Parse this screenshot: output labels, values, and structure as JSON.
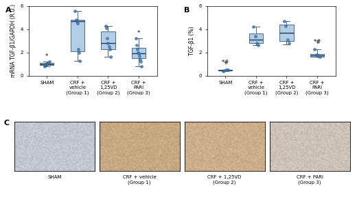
{
  "chart_data": [
    {
      "type": "box",
      "title": "A",
      "y_label": "mRNA TGF-β1/GAPDH (R.U.)",
      "categories": [
        "SHAM",
        "CRF +\nvehicle\n(Group 1)",
        "CRF +\n1,25VD\n(Group 2)",
        "CRF +\nPARI\n(Group 3)"
      ],
      "boxes": [
        {
          "whislo": 0.8,
          "q1": 0.9,
          "med": 1.0,
          "q3": 1.1,
          "whishi": 1.2
        },
        {
          "whislo": 1.3,
          "q1": 2.1,
          "med": 4.7,
          "q3": 4.8,
          "whishi": 5.6
        },
        {
          "whislo": 1.6,
          "q1": 2.3,
          "med": 2.8,
          "q3": 3.8,
          "whishi": 4.3
        },
        {
          "whislo": 0.8,
          "q1": 1.5,
          "med": 1.9,
          "q3": 2.4,
          "whishi": 3.2
        }
      ],
      "points": [
        [
          0.8,
          0.9,
          1.0,
          1.05,
          1.1,
          1.2
        ],
        [
          5.6,
          4.8,
          4.7,
          4.5,
          2.3,
          2.0,
          1.3
        ],
        [
          4.3,
          4.1,
          3.2,
          2.8,
          2.5,
          2.3,
          1.6
        ],
        [
          3.2,
          2.6,
          2.3,
          2.0,
          1.9,
          1.7,
          1.4,
          1.2,
          0.8
        ]
      ],
      "colors": [
        "#f0a868",
        "#b4cde6",
        "#b4cde6",
        "#b4cde6"
      ],
      "color": "#3a7ab8",
      "ylim": [
        0,
        6
      ],
      "yticks": [
        0,
        2,
        4,
        6
      ],
      "annotations": [
        {
          "text": "*",
          "category": 0,
          "y": 1.4
        },
        {
          "text": "*",
          "category": 3,
          "y": 3.4
        }
      ]
    },
    {
      "type": "box",
      "title": "B",
      "y_label": "TGF-β1 (%)",
      "categories": [
        "SHAM",
        "CRF +\nvehicle\n(Group 1)",
        "CRF +\n1,25VD\n(Group 2)",
        "CRF +\nPARI\n(Group 3)"
      ],
      "boxes": [
        {
          "whislo": 0.4,
          "q1": 0.42,
          "med": 0.45,
          "q3": 0.5,
          "whishi": 0.52
        },
        {
          "whislo": 2.6,
          "q1": 2.8,
          "med": 3.1,
          "q3": 3.6,
          "whishi": 4.2
        },
        {
          "whislo": 2.7,
          "q1": 3.0,
          "med": 3.7,
          "q3": 4.4,
          "whishi": 4.7
        },
        {
          "whislo": 1.6,
          "q1": 1.65,
          "med": 1.75,
          "q3": 1.85,
          "whishi": 2.3
        }
      ],
      "points": [
        [
          0.4,
          0.45,
          0.5,
          0.52
        ],
        [
          4.2,
          3.4,
          2.8,
          2.6
        ],
        [
          4.7,
          4.3,
          3.1,
          2.8
        ],
        [
          2.3,
          1.8,
          1.7,
          1.65
        ]
      ],
      "colors": [
        "#f0a868",
        "#b4cde6",
        "#b4cde6",
        "#b4cde6"
      ],
      "color": "#3a7ab8",
      "ylim": [
        0,
        6
      ],
      "yticks": [
        0,
        2,
        4,
        6
      ],
      "annotations": [
        {
          "text": "*#",
          "category": 0,
          "y": 0.85
        },
        {
          "text": "*#",
          "category": 3,
          "y": 2.6
        }
      ]
    }
  ],
  "panel_c": {
    "label": "C",
    "captions": [
      "SHAM",
      "CRF + vehicle\n(Group 1)",
      "CRF + 1,25VD\n(Group 2)",
      "CRF + PARI\n(Group 3)"
    ]
  }
}
